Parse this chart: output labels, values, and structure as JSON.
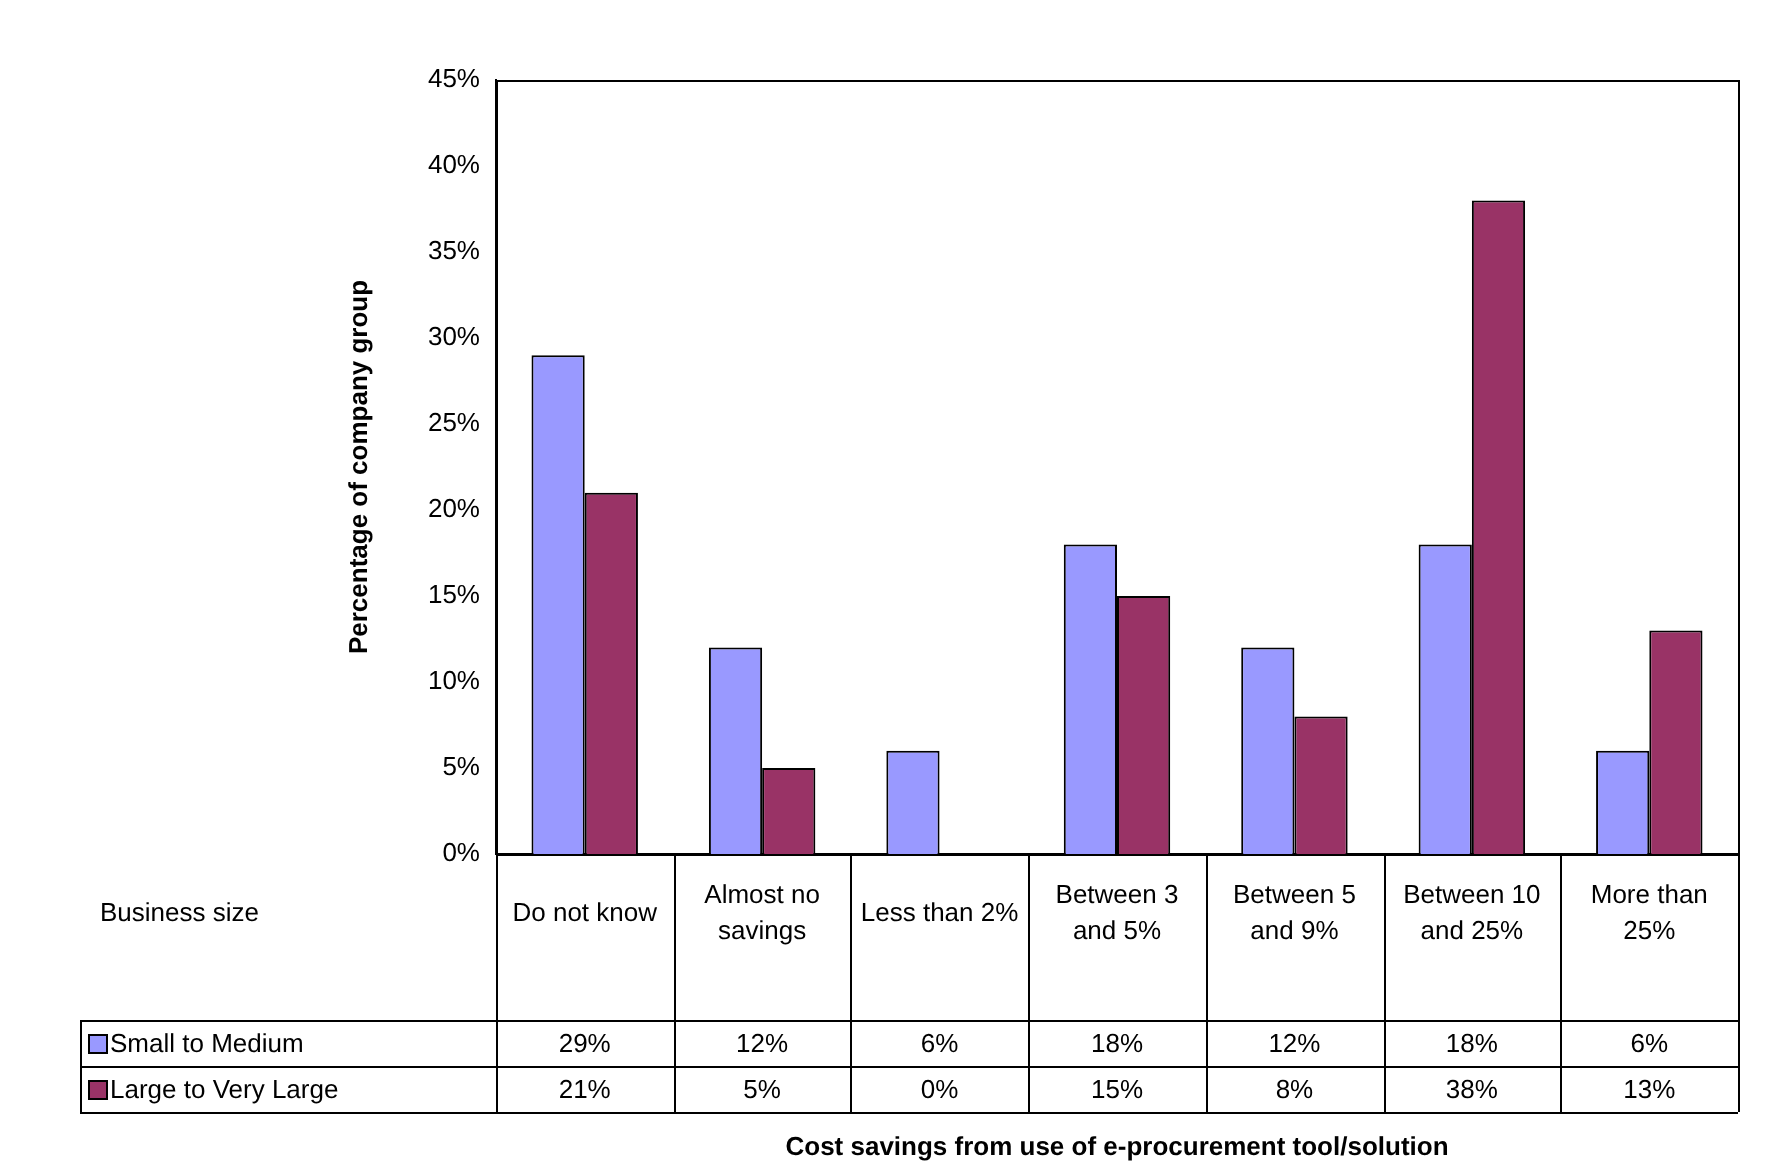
{
  "chart_data": {
    "type": "bar",
    "annotations": [
      "Cost savings from use of e-procurement tool/solution"
    ],
    "legend": "bottom",
    "ylabel": "Percentage of company group",
    "legend_title": "Business size",
    "categories": [
      "Do not know",
      "Almost no savings",
      "Less than 2%",
      "Between 3 and 5%",
      "Between 5 and 9%",
      "Between 10 and 25%",
      "More than 25%"
    ],
    "series": [
      {
        "name": "Small to Medium",
        "color": "#9999ff",
        "values": [
          29,
          12,
          6,
          18,
          12,
          18,
          6
        ],
        "value_labels": [
          "29%",
          "12%",
          "6%",
          "18%",
          "12%",
          "18%",
          "6%"
        ]
      },
      {
        "name": "Large to Very Large",
        "color": "#993366",
        "values": [
          21,
          5,
          0,
          15,
          8,
          38,
          13
        ],
        "value_labels": [
          "21%",
          "5%",
          "0%",
          "15%",
          "8%",
          "38%",
          "13%"
        ]
      }
    ],
    "ylim": [
      0,
      45
    ],
    "yticks": [
      {
        "value": 0,
        "label": "0%"
      },
      {
        "value": 5,
        "label": "5%"
      },
      {
        "value": 10,
        "label": "10%"
      },
      {
        "value": 15,
        "label": "15%"
      },
      {
        "value": 20,
        "label": "20%"
      },
      {
        "value": 25,
        "label": "25%"
      },
      {
        "value": 30,
        "label": "30%"
      },
      {
        "value": 35,
        "label": "35%"
      },
      {
        "value": 40,
        "label": "40%"
      },
      {
        "value": 45,
        "label": "45%"
      }
    ],
    "grid": false
  }
}
